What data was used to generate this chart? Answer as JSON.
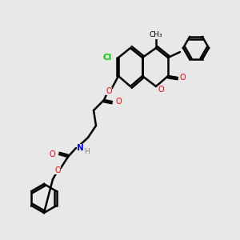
{
  "bg_color": "#e8e8e8",
  "bond_color": "#000000",
  "atom_colors": {
    "O": "#ff0000",
    "N": "#0000ff",
    "Cl": "#00cc00",
    "C": "#000000",
    "H": "#808080"
  },
  "figsize": [
    3.0,
    3.0
  ],
  "dpi": 100
}
